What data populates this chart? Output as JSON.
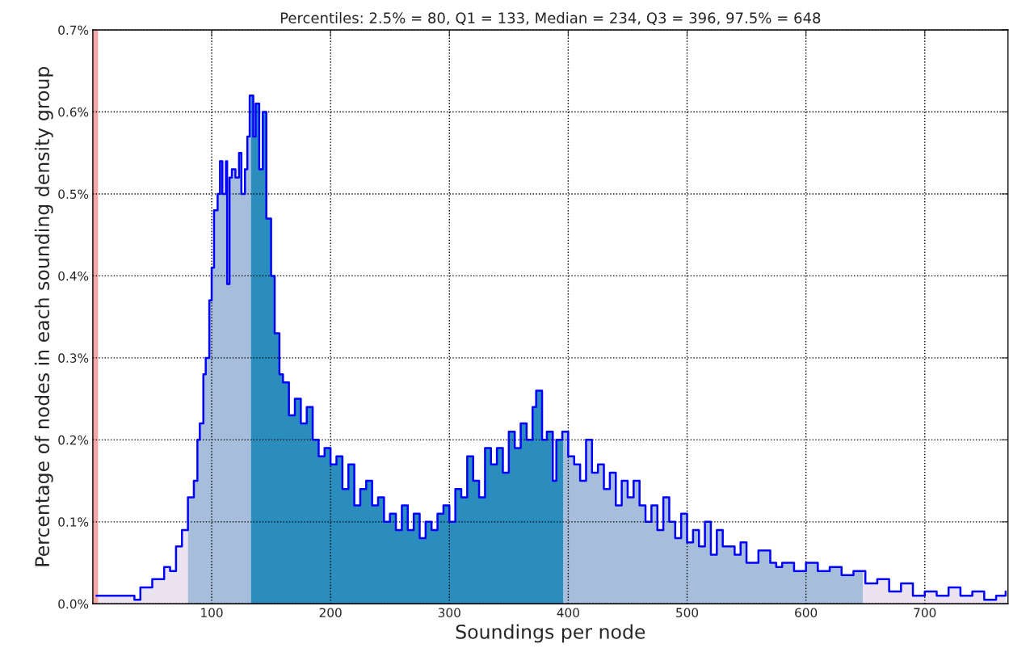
{
  "chart_data": {
    "type": "step",
    "title": "Percentiles: 2.5% = 80, Q1 = 133, Median = 234, Q3 = 396, 97.5% = 648",
    "xlabel": "Soundings per node",
    "ylabel": "Percentage of nodes in each sounding density group",
    "series": [
      {
        "type": "area",
        "color": "#ebe3ef",
        "x": [
          3,
          20,
          35,
          40,
          50,
          60,
          65,
          70,
          75,
          80
        ],
        "values": [
          0.01,
          0.01,
          0.005,
          0.02,
          0.03,
          0.045,
          0.04,
          0.07,
          0.09,
          0.13
        ]
      },
      {
        "type": "area",
        "color": "#a6bddb",
        "x": [
          80,
          85,
          88,
          90,
          93,
          95,
          98,
          100,
          102,
          105,
          107,
          109,
          112,
          113,
          115,
          117,
          120,
          123,
          125,
          128,
          130,
          132,
          133
        ],
        "values": [
          0.13,
          0.15,
          0.2,
          0.22,
          0.28,
          0.3,
          0.37,
          0.41,
          0.48,
          0.5,
          0.54,
          0.5,
          0.54,
          0.39,
          0.52,
          0.53,
          0.52,
          0.55,
          0.5,
          0.53,
          0.57,
          0.62,
          0.62
        ]
      },
      {
        "type": "area",
        "color": "#2b8cbe",
        "x": [
          133,
          135,
          137,
          140,
          143,
          146,
          150,
          153,
          157,
          160,
          165,
          170,
          175,
          180,
          185,
          190,
          195,
          200,
          205,
          210,
          215,
          220,
          225,
          230,
          235,
          240,
          245,
          250,
          255,
          260,
          265,
          270,
          275,
          280,
          285,
          290,
          295,
          300,
          305,
          310,
          315,
          320,
          325,
          330,
          335,
          340,
          345,
          350,
          355,
          360,
          365,
          370,
          373,
          378,
          382,
          387,
          390,
          395,
          396
        ],
        "values": [
          0.62,
          0.57,
          0.61,
          0.53,
          0.6,
          0.47,
          0.4,
          0.33,
          0.28,
          0.27,
          0.23,
          0.25,
          0.22,
          0.24,
          0.2,
          0.18,
          0.19,
          0.17,
          0.18,
          0.14,
          0.17,
          0.12,
          0.14,
          0.15,
          0.12,
          0.13,
          0.1,
          0.11,
          0.09,
          0.12,
          0.09,
          0.11,
          0.08,
          0.1,
          0.09,
          0.11,
          0.12,
          0.1,
          0.14,
          0.13,
          0.18,
          0.15,
          0.13,
          0.19,
          0.17,
          0.19,
          0.16,
          0.21,
          0.19,
          0.22,
          0.2,
          0.24,
          0.26,
          0.2,
          0.21,
          0.15,
          0.2,
          0.21,
          0.21
        ]
      },
      {
        "type": "area",
        "color": "#a6bddb",
        "x": [
          396,
          400,
          405,
          410,
          415,
          420,
          425,
          430,
          435,
          440,
          445,
          450,
          455,
          460,
          465,
          470,
          475,
          480,
          485,
          490,
          495,
          500,
          505,
          510,
          515,
          520,
          525,
          530,
          540,
          545,
          550,
          560,
          570,
          575,
          580,
          590,
          600,
          610,
          620,
          630,
          640,
          648
        ],
        "values": [
          0.21,
          0.18,
          0.17,
          0.15,
          0.2,
          0.16,
          0.17,
          0.14,
          0.16,
          0.12,
          0.15,
          0.13,
          0.15,
          0.12,
          0.1,
          0.12,
          0.09,
          0.13,
          0.1,
          0.08,
          0.11,
          0.075,
          0.09,
          0.07,
          0.1,
          0.06,
          0.09,
          0.07,
          0.06,
          0.075,
          0.05,
          0.065,
          0.05,
          0.045,
          0.05,
          0.04,
          0.05,
          0.04,
          0.045,
          0.035,
          0.04,
          0.04
        ]
      },
      {
        "type": "area",
        "color": "#ebe3ef",
        "x": [
          648,
          650,
          660,
          670,
          680,
          690,
          700,
          710,
          720,
          730,
          740,
          750,
          760,
          768
        ],
        "values": [
          0.04,
          0.025,
          0.03,
          0.015,
          0.025,
          0.01,
          0.015,
          0.01,
          0.02,
          0.01,
          0.015,
          0.005,
          0.01,
          0.015
        ]
      },
      {
        "color": "#0000ff",
        "x": [
          3,
          20,
          35,
          40,
          50,
          60,
          65,
          70,
          75,
          80,
          85,
          88,
          90,
          93,
          95,
          98,
          100,
          102,
          105,
          107,
          109,
          112,
          113,
          115,
          117,
          120,
          123,
          125,
          128,
          130,
          132,
          133,
          135,
          137,
          140,
          143,
          146,
          150,
          153,
          157,
          160,
          165,
          170,
          175,
          180,
          185,
          190,
          195,
          200,
          205,
          210,
          215,
          220,
          225,
          230,
          235,
          240,
          245,
          250,
          255,
          260,
          265,
          270,
          275,
          280,
          285,
          290,
          295,
          300,
          305,
          310,
          315,
          320,
          325,
          330,
          335,
          340,
          345,
          350,
          355,
          360,
          365,
          370,
          373,
          378,
          382,
          387,
          390,
          395,
          396,
          400,
          405,
          410,
          415,
          420,
          425,
          430,
          435,
          440,
          445,
          450,
          455,
          460,
          465,
          470,
          475,
          480,
          485,
          490,
          495,
          500,
          505,
          510,
          515,
          520,
          525,
          530,
          540,
          545,
          550,
          560,
          570,
          575,
          580,
          590,
          600,
          610,
          620,
          630,
          640,
          648,
          650,
          660,
          670,
          680,
          690,
          700,
          710,
          720,
          730,
          740,
          750,
          760,
          768
        ],
        "values": [
          0.01,
          0.01,
          0.005,
          0.02,
          0.03,
          0.045,
          0.04,
          0.07,
          0.09,
          0.13,
          0.15,
          0.2,
          0.22,
          0.28,
          0.3,
          0.37,
          0.41,
          0.48,
          0.5,
          0.54,
          0.5,
          0.54,
          0.39,
          0.52,
          0.53,
          0.52,
          0.55,
          0.5,
          0.53,
          0.57,
          0.62,
          0.62,
          0.57,
          0.61,
          0.53,
          0.6,
          0.47,
          0.4,
          0.33,
          0.28,
          0.27,
          0.23,
          0.25,
          0.22,
          0.24,
          0.2,
          0.18,
          0.19,
          0.17,
          0.18,
          0.14,
          0.17,
          0.12,
          0.14,
          0.15,
          0.12,
          0.13,
          0.1,
          0.11,
          0.09,
          0.12,
          0.09,
          0.11,
          0.08,
          0.1,
          0.09,
          0.11,
          0.12,
          0.1,
          0.14,
          0.13,
          0.18,
          0.15,
          0.13,
          0.19,
          0.17,
          0.19,
          0.16,
          0.21,
          0.19,
          0.22,
          0.2,
          0.24,
          0.26,
          0.2,
          0.21,
          0.15,
          0.2,
          0.21,
          0.21,
          0.18,
          0.17,
          0.15,
          0.2,
          0.16,
          0.17,
          0.14,
          0.16,
          0.12,
          0.15,
          0.13,
          0.15,
          0.12,
          0.1,
          0.12,
          0.09,
          0.13,
          0.1,
          0.08,
          0.11,
          0.075,
          0.09,
          0.07,
          0.1,
          0.06,
          0.09,
          0.07,
          0.06,
          0.075,
          0.05,
          0.065,
          0.05,
          0.045,
          0.05,
          0.04,
          0.05,
          0.04,
          0.045,
          0.035,
          0.04,
          0.04,
          0.025,
          0.03,
          0.015,
          0.025,
          0.01,
          0.015,
          0.01,
          0.02,
          0.01,
          0.015,
          0.005,
          0.01,
          0.015
        ]
      }
    ],
    "ref_lines": [
      {
        "axis": "x",
        "value": 2,
        "color": "#f4a6a6"
      }
    ],
    "xlim": [
      0,
      770
    ],
    "xticks": [
      100,
      200,
      300,
      400,
      500,
      600,
      700
    ],
    "ylim": [
      0,
      0.7
    ],
    "yticks": [
      {
        "value": 0,
        "label": "0.0%"
      },
      {
        "value": 0.1,
        "label": "0.1%"
      },
      {
        "value": 0.2,
        "label": "0.2%"
      },
      {
        "value": 0.3,
        "label": "0.3%"
      },
      {
        "value": 0.4,
        "label": "0.4%"
      },
      {
        "value": 0.5,
        "label": "0.5%"
      },
      {
        "value": 0.6,
        "label": "0.6%"
      },
      {
        "value": 0.7,
        "label": "0.7%"
      }
    ],
    "grid": true,
    "line_style": "solid"
  }
}
